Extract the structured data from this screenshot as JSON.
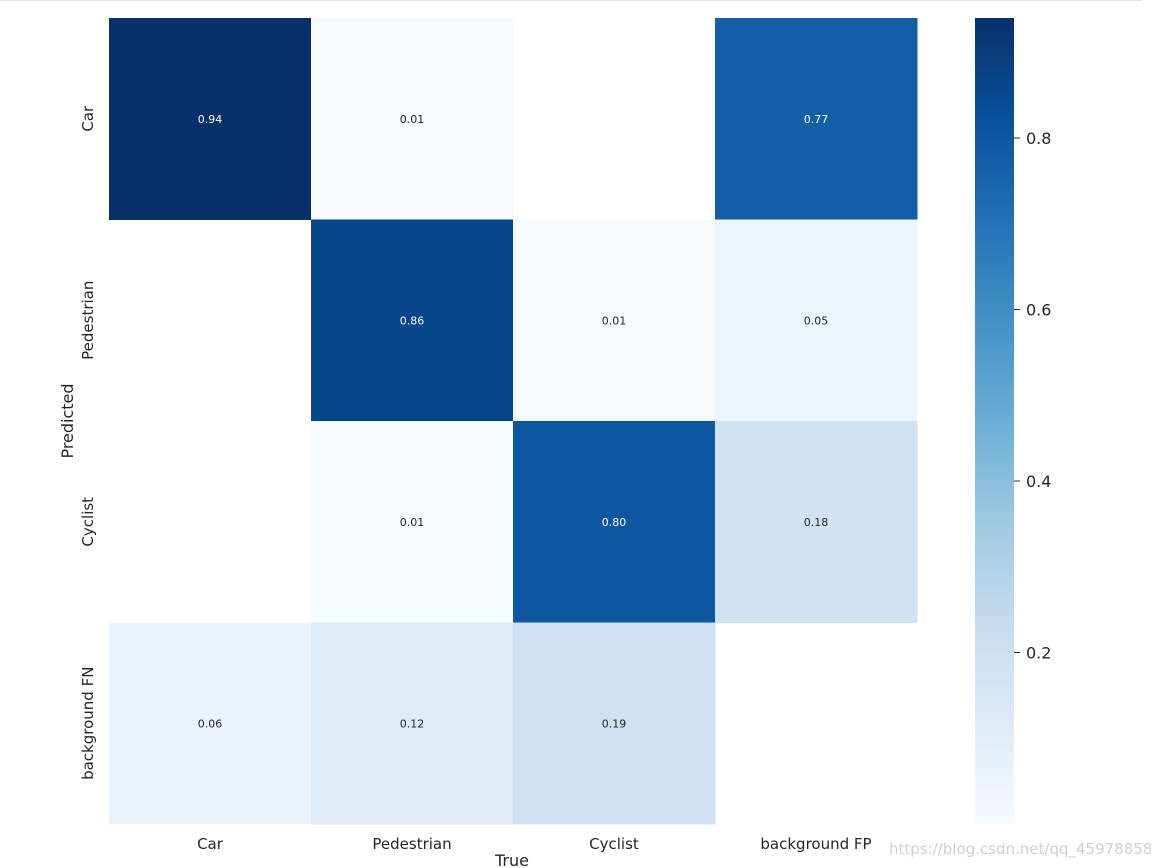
{
  "chart_data": {
    "type": "heatmap",
    "xlabel": "True",
    "ylabel": "Predicted",
    "x_categories": [
      "Car",
      "Pedestrian",
      "Cyclist",
      "background FP"
    ],
    "y_categories": [
      "Car",
      "Pedestrian",
      "Cyclist",
      "background FN"
    ],
    "values": [
      [
        0.94,
        0.01,
        null,
        0.77
      ],
      [
        null,
        0.86,
        0.01,
        0.05
      ],
      [
        null,
        0.01,
        0.8,
        0.18
      ],
      [
        0.06,
        0.12,
        0.19,
        null
      ]
    ],
    "labels": [
      [
        "0.94",
        "0.01",
        "",
        "0.77"
      ],
      [
        "",
        "0.86",
        "0.01",
        "0.05"
      ],
      [
        "",
        "0.01",
        "0.80",
        "0.18"
      ],
      [
        "0.06",
        "0.12",
        "0.19",
        ""
      ]
    ],
    "colormap": "Blues",
    "colorbar": {
      "range": [
        0.0,
        0.94
      ],
      "ticks": [
        0.2,
        0.4,
        0.6,
        0.8
      ],
      "tick_labels": [
        "0.2",
        "0.4",
        "0.6",
        "0.8"
      ]
    },
    "grid": false
  },
  "watermark": "https://blog.csdn.net/qq_45978858"
}
